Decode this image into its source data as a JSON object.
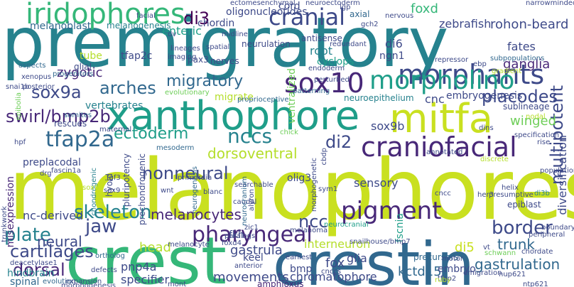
{
  "palette": {
    "c1": "#482878",
    "c2": "#3e4a89",
    "c3": "#31688e",
    "c4": "#26828e",
    "c5": "#1f9e89",
    "c6": "#35b779",
    "c7": "#6ece58",
    "c8": "#b5de2b",
    "c9": "#440154",
    "c10": "#c9e020"
  },
  "words": [
    {
      "t": "premigratory",
      "c": "c4"
    },
    {
      "t": "melanophores",
      "c": "c10"
    },
    {
      "t": "crest",
      "c": "c6"
    },
    {
      "t": "crestin",
      "c": "c3"
    },
    {
      "t": "xanthophore",
      "c": "c5"
    },
    {
      "t": "mitfa",
      "c": "c10"
    },
    {
      "t": "iridophores",
      "c": "c6"
    },
    {
      "t": "morphants",
      "c": "c2"
    },
    {
      "t": "cranial",
      "c": "c2"
    },
    {
      "t": "craniofacial",
      "c": "c1"
    },
    {
      "t": "sox10",
      "c": "c1"
    },
    {
      "t": "morpholino",
      "c": "c5"
    },
    {
      "t": "pigment",
      "c": "c1"
    },
    {
      "t": "sox9a",
      "c": "c2"
    },
    {
      "t": "tfap2a",
      "c": "c3"
    },
    {
      "t": "nccs",
      "c": "c4"
    },
    {
      "t": "di2",
      "c": "c2"
    },
    {
      "t": "skeleton",
      "c": "c4"
    },
    {
      "t": "pharyngeal",
      "c": "c1"
    },
    {
      "t": "cartilages",
      "c": "c2"
    },
    {
      "t": "dorsal",
      "c": "c1"
    },
    {
      "t": "plate",
      "c": "c4"
    },
    {
      "t": "jaw",
      "c": "c2"
    },
    {
      "t": "ncc",
      "c": "c2"
    },
    {
      "t": "border",
      "c": "c2"
    },
    {
      "t": "nonneural",
      "c": "c2"
    },
    {
      "t": "ectoderm",
      "c": "c5"
    },
    {
      "t": "swirl/bmp2b",
      "c": "c1"
    },
    {
      "t": "arches",
      "c": "c3"
    },
    {
      "t": "migratory",
      "c": "c3"
    },
    {
      "t": "placodes",
      "c": "c2"
    },
    {
      "t": "multipotent",
      "c": "c2"
    },
    {
      "t": "dorsoventral",
      "c": "c8"
    },
    {
      "t": "melanocytes",
      "c": "c1"
    },
    {
      "t": "neural",
      "c": "c2"
    },
    {
      "t": "di3",
      "c": "c9"
    },
    {
      "t": "enteric",
      "c": "c5"
    },
    {
      "t": "melanoblast",
      "c": "c3"
    },
    {
      "t": "rohon-beard",
      "c": "c2"
    },
    {
      "t": "zebrafish",
      "c": "c2"
    },
    {
      "t": "foxd",
      "c": "c6"
    },
    {
      "t": "di6",
      "c": "c2"
    },
    {
      "t": "fates",
      "c": "c2"
    },
    {
      "t": "ganglia",
      "c": "c1"
    },
    {
      "t": "winged",
      "c": "c7"
    },
    {
      "t": "trunk",
      "c": "c3"
    },
    {
      "t": "gastrulation",
      "c": "c3"
    },
    {
      "t": "kctd15",
      "c": "c3"
    },
    {
      "t": "chromatophore",
      "c": "c2"
    },
    {
      "t": "movements",
      "c": "c2"
    },
    {
      "t": "di5",
      "c": "c10"
    },
    {
      "t": "glia",
      "c": "c2"
    },
    {
      "t": "gastrula",
      "c": "c2"
    },
    {
      "t": "head",
      "c": "c8"
    },
    {
      "t": "pnp4a",
      "c": "c2"
    },
    {
      "t": "specifier",
      "c": "c2"
    },
    {
      "t": "spinal",
      "c": "c3"
    },
    {
      "t": "hindbrain",
      "c": "c4"
    },
    {
      "t": "nc-derived",
      "c": "c2"
    },
    {
      "t": "misexpression",
      "c": "c1"
    },
    {
      "t": "preplacodal",
      "c": "c2"
    },
    {
      "t": "zygotic",
      "c": "c1"
    },
    {
      "t": "vertebrates",
      "c": "c4"
    },
    {
      "t": "tube",
      "c": "c8"
    },
    {
      "t": "root",
      "c": "c4"
    },
    {
      "t": "cyclops",
      "c": "c5"
    },
    {
      "t": "ngn1",
      "c": "c2"
    },
    {
      "t": "ventralized",
      "c": "c7"
    },
    {
      "t": "embryogenesis",
      "c": "c2"
    },
    {
      "t": "cnc",
      "c": "c2"
    },
    {
      "t": "sox9b",
      "c": "c2"
    },
    {
      "t": "sensory",
      "c": "c2"
    },
    {
      "t": "fscnia",
      "c": "c5"
    },
    {
      "t": "interneuron",
      "c": "c8"
    },
    {
      "t": "fox",
      "c": "c2"
    },
    {
      "t": "diversification",
      "c": "c2"
    },
    {
      "t": "bmp",
      "c": "c2"
    },
    {
      "t": "olig3",
      "c": "c2"
    },
    {
      "t": "keel",
      "c": "c2"
    },
    {
      "t": "fkh",
      "c": "c2"
    },
    {
      "t": "tfap2c",
      "c": "c2"
    },
    {
      "t": "migrate",
      "c": "c8"
    },
    {
      "t": "pax3",
      "c": "c2"
    },
    {
      "t": "embryo",
      "c": "c2"
    },
    {
      "t": "precursors",
      "c": "c3"
    },
    {
      "t": "chordin",
      "c": "c2"
    },
    {
      "t": "oligonucleotides",
      "c": "c2"
    },
    {
      "t": "cord",
      "c": "c2"
    },
    {
      "t": "neurulation",
      "c": "c2"
    },
    {
      "t": "melanogenesis",
      "c": "c4"
    },
    {
      "t": "ectomesenchymal",
      "c": "c2"
    },
    {
      "t": "neuroepithelium",
      "c": "c4"
    },
    {
      "t": "pluripotency",
      "c": "c2"
    },
    {
      "t": "prechondrogenic",
      "c": "c2"
    },
    {
      "t": "wnt",
      "c": "c2"
    },
    {
      "t": "amphioxus",
      "c": "c1"
    },
    {
      "t": "neurocranial",
      "c": "c5"
    },
    {
      "t": "hyoid",
      "c": "c2"
    },
    {
      "t": "somites",
      "c": "c3"
    },
    {
      "t": "rescues",
      "c": "c2"
    },
    {
      "t": "fascin1a",
      "c": "c2"
    },
    {
      "t": "hpf",
      "c": "c2"
    },
    {
      "t": "drg",
      "c": "c2"
    },
    {
      "t": "glial",
      "c": "c2"
    },
    {
      "t": "xenopus",
      "c": "c2"
    },
    {
      "t": "snai1b",
      "c": "c2"
    },
    {
      "t": "progenitors",
      "c": "c3"
    },
    {
      "t": "lineages",
      "c": "c2"
    },
    {
      "t": "imaging",
      "c": "c2"
    },
    {
      "t": "nerves",
      "c": "c2"
    },
    {
      "t": "spatial",
      "c": "c2"
    },
    {
      "t": "midline",
      "c": "c2"
    },
    {
      "t": "axial",
      "c": "c3"
    },
    {
      "t": "antisense",
      "c": "c2"
    },
    {
      "t": "endoderm",
      "c": "c2"
    },
    {
      "t": "perturbed",
      "c": "c2"
    },
    {
      "t": "patterning",
      "c": "c3"
    },
    {
      "t": "nervous",
      "c": "c2"
    },
    {
      "t": "repressor",
      "c": "c2"
    },
    {
      "t": "gradient",
      "c": "c8"
    },
    {
      "t": "subpopulations",
      "c": "c3"
    },
    {
      "t": "proprioceptive",
      "c": "c3"
    },
    {
      "t": "evolutionary",
      "c": "c7"
    },
    {
      "t": "neuroectoderm",
      "c": "c2"
    },
    {
      "t": "facial",
      "c": "c2"
    },
    {
      "t": "narrowminded",
      "c": "c2"
    },
    {
      "t": "maternal",
      "c": "c2"
    },
    {
      "t": "annotated",
      "c": "c2"
    },
    {
      "t": "chick",
      "c": "c7"
    },
    {
      "t": "dins",
      "c": "c2"
    },
    {
      "t": "her3",
      "c": "c2"
    },
    {
      "t": "specification",
      "c": "c2"
    },
    {
      "t": "rise",
      "c": "c2"
    },
    {
      "t": "sublineage",
      "c": "c2"
    },
    {
      "t": "chondrogenic",
      "c": "c4"
    },
    {
      "t": "mesoderm",
      "c": "c3"
    },
    {
      "t": "searchable",
      "c": "c2"
    },
    {
      "t": "helix",
      "c": "c2"
    },
    {
      "t": "presumptive",
      "c": "c2"
    },
    {
      "t": "epiblast",
      "c": "c2"
    },
    {
      "t": "populations",
      "c": "c2"
    },
    {
      "t": "di3b",
      "c": "c4"
    },
    {
      "t": "blanc",
      "c": "c2"
    },
    {
      "t": "caudal",
      "c": "c2"
    },
    {
      "t": "neurogenesis",
      "c": "c3"
    },
    {
      "t": "sym1",
      "c": "c2"
    },
    {
      "t": "cncc",
      "c": "c2"
    },
    {
      "t": "boundary",
      "c": "c2"
    },
    {
      "t": "peripheral",
      "c": "c2"
    },
    {
      "t": "melanoma",
      "c": "c2"
    },
    {
      "t": "paralogs",
      "c": "c2"
    },
    {
      "t": "foxd4",
      "c": "c2"
    },
    {
      "t": "trunkwork",
      "c": "c2"
    },
    {
      "t": "deacetylase1",
      "c": "c2"
    },
    {
      "t": "evolution",
      "c": "c3"
    },
    {
      "t": "expansion",
      "c": "c2"
    },
    {
      "t": "defects",
      "c": "c2"
    },
    {
      "t": "morphogenesis",
      "c": "c2"
    },
    {
      "t": "ortholog",
      "c": "c3"
    },
    {
      "t": "anterior",
      "c": "c2"
    },
    {
      "t": "earliest",
      "c": "c2"
    },
    {
      "t": "snailhouse/bmp7",
      "c": "c2"
    },
    {
      "t": "cnccs",
      "c": "c2"
    },
    {
      "t": "tfap2",
      "c": "c2"
    },
    {
      "t": "emigration",
      "c": "c2"
    },
    {
      "t": "motor",
      "c": "c2"
    },
    {
      "t": "nup621",
      "c": "c2"
    },
    {
      "t": "schwann",
      "c": "c7"
    },
    {
      "t": "chordate",
      "c": "c2"
    },
    {
      "t": "vt",
      "c": "c2"
    },
    {
      "t": "ntp621",
      "c": "c2"
    },
    {
      "t": "mont",
      "c": "c2"
    },
    {
      "t": "neurocranium",
      "c": "c3"
    },
    {
      "t": "morphogenetic",
      "c": "c2"
    },
    {
      "t": "alyron",
      "c": "c2"
    },
    {
      "t": "sox9",
      "c": "c2"
    },
    {
      "t": "sox8",
      "c": "c8"
    },
    {
      "t": "epibolia",
      "c": "c7"
    },
    {
      "t": "posterior",
      "c": "c2"
    },
    {
      "t": "aspects",
      "c": "c3"
    },
    {
      "t": "ruby",
      "c": "c8"
    },
    {
      "t": "dv",
      "c": "c2"
    },
    {
      "t": "nodal",
      "c": "c8"
    },
    {
      "t": "gch2",
      "c": "c2"
    },
    {
      "t": "redundant",
      "c": "c2"
    },
    {
      "t": "lgp",
      "c": "c2"
    },
    {
      "t": "zic1",
      "c": "c2"
    },
    {
      "t": "cbdp",
      "c": "c2"
    },
    {
      "t": "ebp",
      "c": "c2"
    },
    {
      "t": "discrete",
      "c": "c8"
    },
    {
      "t": "fgf3",
      "c": "c2"
    },
    {
      "t": "primordia",
      "c": "c2"
    },
    {
      "t": "melanocyte",
      "c": "c2"
    }
  ]
}
